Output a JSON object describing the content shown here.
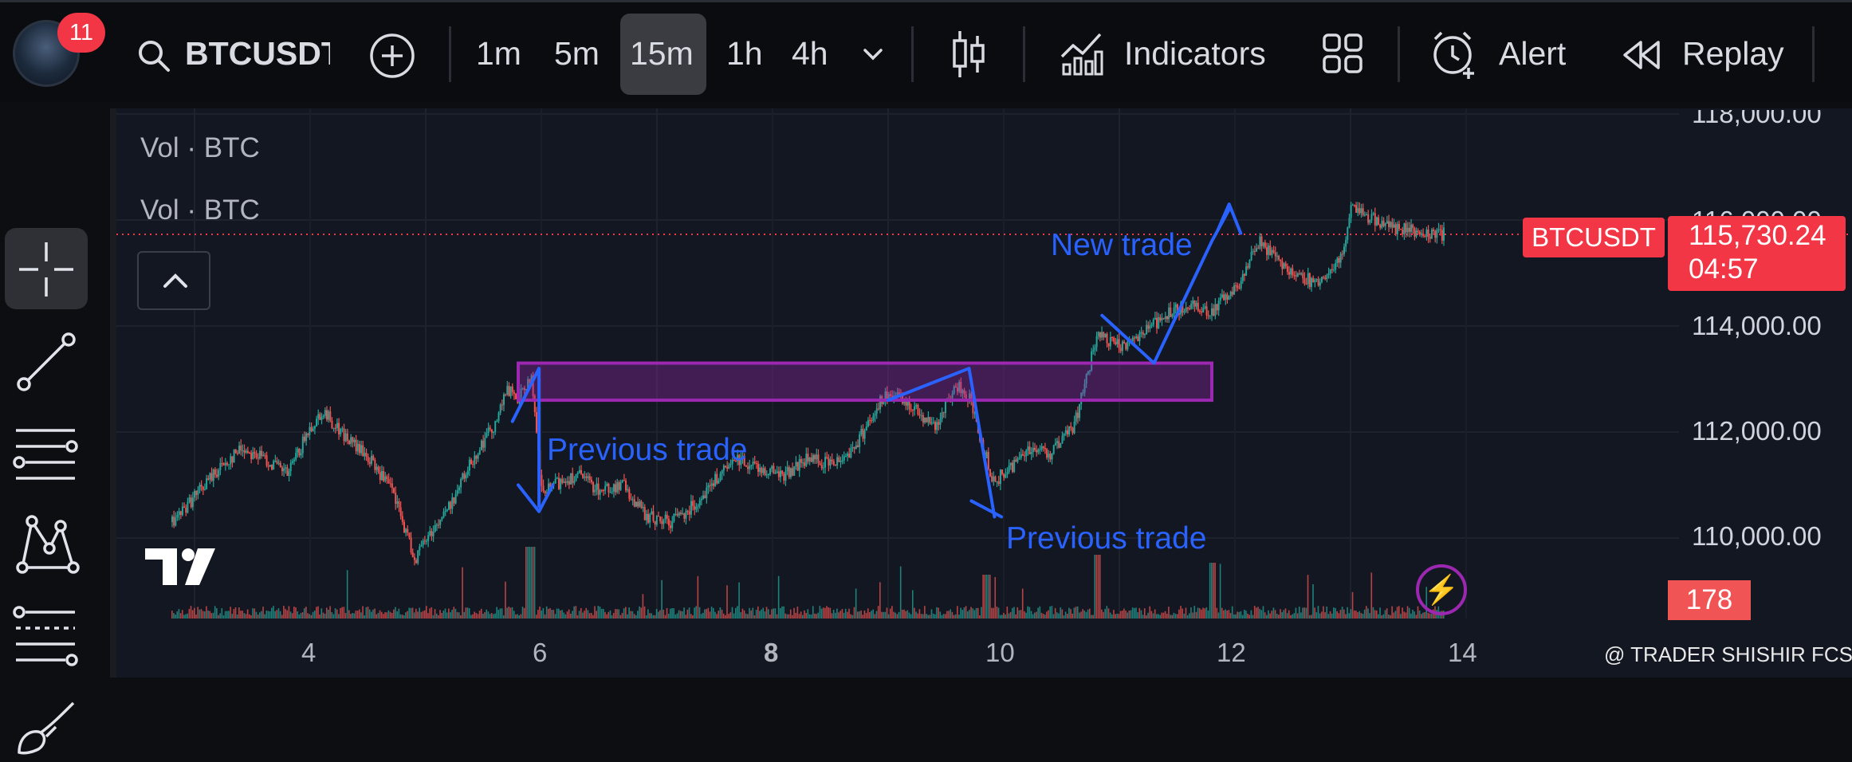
{
  "header": {
    "notification_count": "11",
    "symbol": "BTCUSDT",
    "timeframes": [
      "1m",
      "5m",
      "15m",
      "1h",
      "4h"
    ],
    "active_timeframe": "15m",
    "indicators_label": "Indicators",
    "alert_label": "Alert",
    "replay_label": "Replay"
  },
  "icons": {
    "search": "search-icon",
    "add": "plus-circle-icon",
    "more_timeframes": "chevron-down-icon",
    "chart_type": "candlestick-icon",
    "indicators": "indicators-icon",
    "layout": "grid-icon",
    "alert": "alarm-clock-icon",
    "replay": "rewind-icon"
  },
  "toolbar": {
    "tools": [
      "crosshair-icon",
      "trend-line-icon",
      "horizontal-lines-icon",
      "pattern-icon",
      "fib-retracement-icon",
      "brush-icon"
    ]
  },
  "legend": [
    "Vol · BTC",
    "Vol · BTC"
  ],
  "price_axis": [
    "118,000.00",
    "116,000.00",
    "114,000.00",
    "112,000.00",
    "110,000.00"
  ],
  "time_axis": [
    "4",
    "6",
    "8",
    "10",
    "12",
    "14"
  ],
  "current": {
    "symbol_label": "BTCUSDT",
    "price": "115,730.24",
    "countdown": "04:57",
    "volume": "178"
  },
  "annotations": {
    "previous_1": "Previous trade",
    "previous_2": "Previous trade",
    "new": "New trade"
  },
  "watermark": "@ TRADER SHISHIR FCS",
  "colors": {
    "up": "#26a69a",
    "down": "#ef5350",
    "price_line": "#f23645",
    "drawing": "#2962ff",
    "zone": "#9c27b0",
    "background": "#131722"
  },
  "chart_data": {
    "type": "candlestick",
    "symbol": "BTCUSDT",
    "interval": "15m",
    "x_ticks": [
      "4",
      "6",
      "8",
      "10",
      "12",
      "14"
    ],
    "y_ticks": [
      110000,
      112000,
      114000,
      116000,
      118000
    ],
    "ylim": [
      108500,
      118200
    ],
    "last_price": 115730.24,
    "last_volume": 178,
    "price_path": [
      [
        2.8,
        110300
      ],
      [
        3.0,
        110800
      ],
      [
        3.2,
        111300
      ],
      [
        3.4,
        111700
      ],
      [
        3.6,
        111500
      ],
      [
        3.8,
        111200
      ],
      [
        4.0,
        112100
      ],
      [
        4.1,
        112400
      ],
      [
        4.3,
        111900
      ],
      [
        4.5,
        111500
      ],
      [
        4.7,
        110900
      ],
      [
        4.9,
        109600
      ],
      [
        5.0,
        110000
      ],
      [
        5.2,
        110600
      ],
      [
        5.4,
        111500
      ],
      [
        5.6,
        112200
      ],
      [
        5.7,
        112800
      ],
      [
        5.8,
        112600
      ],
      [
        5.9,
        113100
      ],
      [
        6.0,
        110800
      ],
      [
        6.1,
        111000
      ],
      [
        6.3,
        111200
      ],
      [
        6.5,
        110900
      ],
      [
        6.7,
        111000
      ],
      [
        6.9,
        110400
      ],
      [
        7.1,
        110300
      ],
      [
        7.3,
        110600
      ],
      [
        7.5,
        111100
      ],
      [
        7.7,
        111500
      ],
      [
        7.9,
        111300
      ],
      [
        8.1,
        111200
      ],
      [
        8.3,
        111500
      ],
      [
        8.5,
        111400
      ],
      [
        8.7,
        111700
      ],
      [
        8.9,
        112500
      ],
      [
        9.0,
        112700
      ],
      [
        9.2,
        112500
      ],
      [
        9.4,
        112100
      ],
      [
        9.6,
        112900
      ],
      [
        9.7,
        112600
      ],
      [
        9.9,
        111100
      ],
      [
        10.0,
        111200
      ],
      [
        10.2,
        111700
      ],
      [
        10.4,
        111600
      ],
      [
        10.6,
        112100
      ],
      [
        10.8,
        113800
      ],
      [
        11.0,
        113600
      ],
      [
        11.2,
        113900
      ],
      [
        11.4,
        114200
      ],
      [
        11.6,
        114400
      ],
      [
        11.8,
        114300
      ],
      [
        12.0,
        114700
      ],
      [
        12.2,
        115600
      ],
      [
        12.3,
        115400
      ],
      [
        12.5,
        115000
      ],
      [
        12.7,
        114800
      ],
      [
        12.9,
        115200
      ],
      [
        13.0,
        116200
      ],
      [
        13.1,
        116100
      ],
      [
        13.3,
        115900
      ],
      [
        13.5,
        115800
      ],
      [
        13.8,
        115730
      ]
    ],
    "zones": [
      {
        "x_start": 5.8,
        "x_end": 11.8,
        "y_low": 112600,
        "y_high": 113300
      }
    ]
  }
}
